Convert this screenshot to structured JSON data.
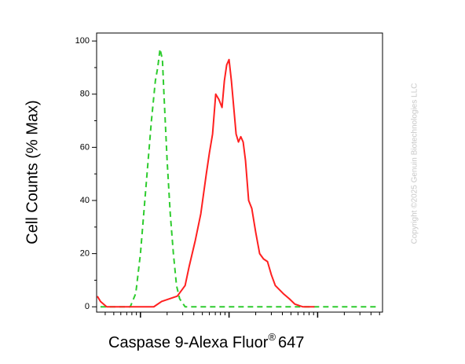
{
  "chart_data": {
    "type": "line",
    "xscale": "log",
    "x_label": "Caspase 9-Alexa Fluor",
    "x_label_mark": "®",
    "x_label_suffix": "647",
    "y_label": "Cell Counts (% Max)",
    "copyright": "Copyright ©2025 Genuin Biotechnologies LLC",
    "xlim": [
      320,
      540000
    ],
    "xticks": [
      1000,
      10000,
      100000
    ],
    "ylim": [
      -2,
      103
    ],
    "yticks": [
      0,
      20,
      40,
      60,
      80,
      100
    ],
    "series": [
      {
        "color": "#2ecc2e",
        "dashed": true,
        "x": [
          354,
          416,
          565,
          767,
          885,
          1000,
          1153,
          1330,
          1473,
          1566,
          1664,
          1770,
          1842,
          2000,
          2170,
          2354,
          2553,
          2770,
          3193,
          3917,
          4800,
          6517,
          10000,
          20000,
          40830,
          92200,
          169800,
          470600
        ],
        "values": [
          0,
          0,
          0,
          0,
          5,
          20,
          45,
          70,
          85,
          90,
          97,
          93,
          80,
          55,
          35,
          20,
          8,
          3,
          0,
          0,
          0,
          0,
          0,
          0,
          0,
          0,
          0,
          0
        ]
      },
      {
        "color": "#ff2020",
        "dashed": false,
        "x": [
          326,
          354,
          416,
          565,
          767,
          1000,
          1414,
          1734,
          2125,
          2606,
          3193,
          3537,
          4161,
          4800,
          5537,
          6009,
          6517,
          7073,
          7677,
          8332,
          8853,
          9406,
          10000,
          10630,
          11300,
          12010,
          12770,
          13570,
          14430,
          15340,
          16640,
          18060,
          20000,
          22150,
          24500,
          27160,
          30060,
          33270,
          40830,
          48000,
          55340,
          67860,
          92200
        ],
        "values": [
          4,
          2,
          0,
          0,
          0,
          0,
          0,
          2,
          3,
          4,
          8,
          15,
          25,
          35,
          50,
          58,
          65,
          80,
          78,
          75,
          85,
          91,
          93,
          85,
          75,
          65,
          62,
          64,
          62,
          55,
          40,
          37,
          28,
          20,
          18,
          17,
          12,
          8,
          5,
          3,
          1,
          0,
          0
        ]
      }
    ]
  }
}
